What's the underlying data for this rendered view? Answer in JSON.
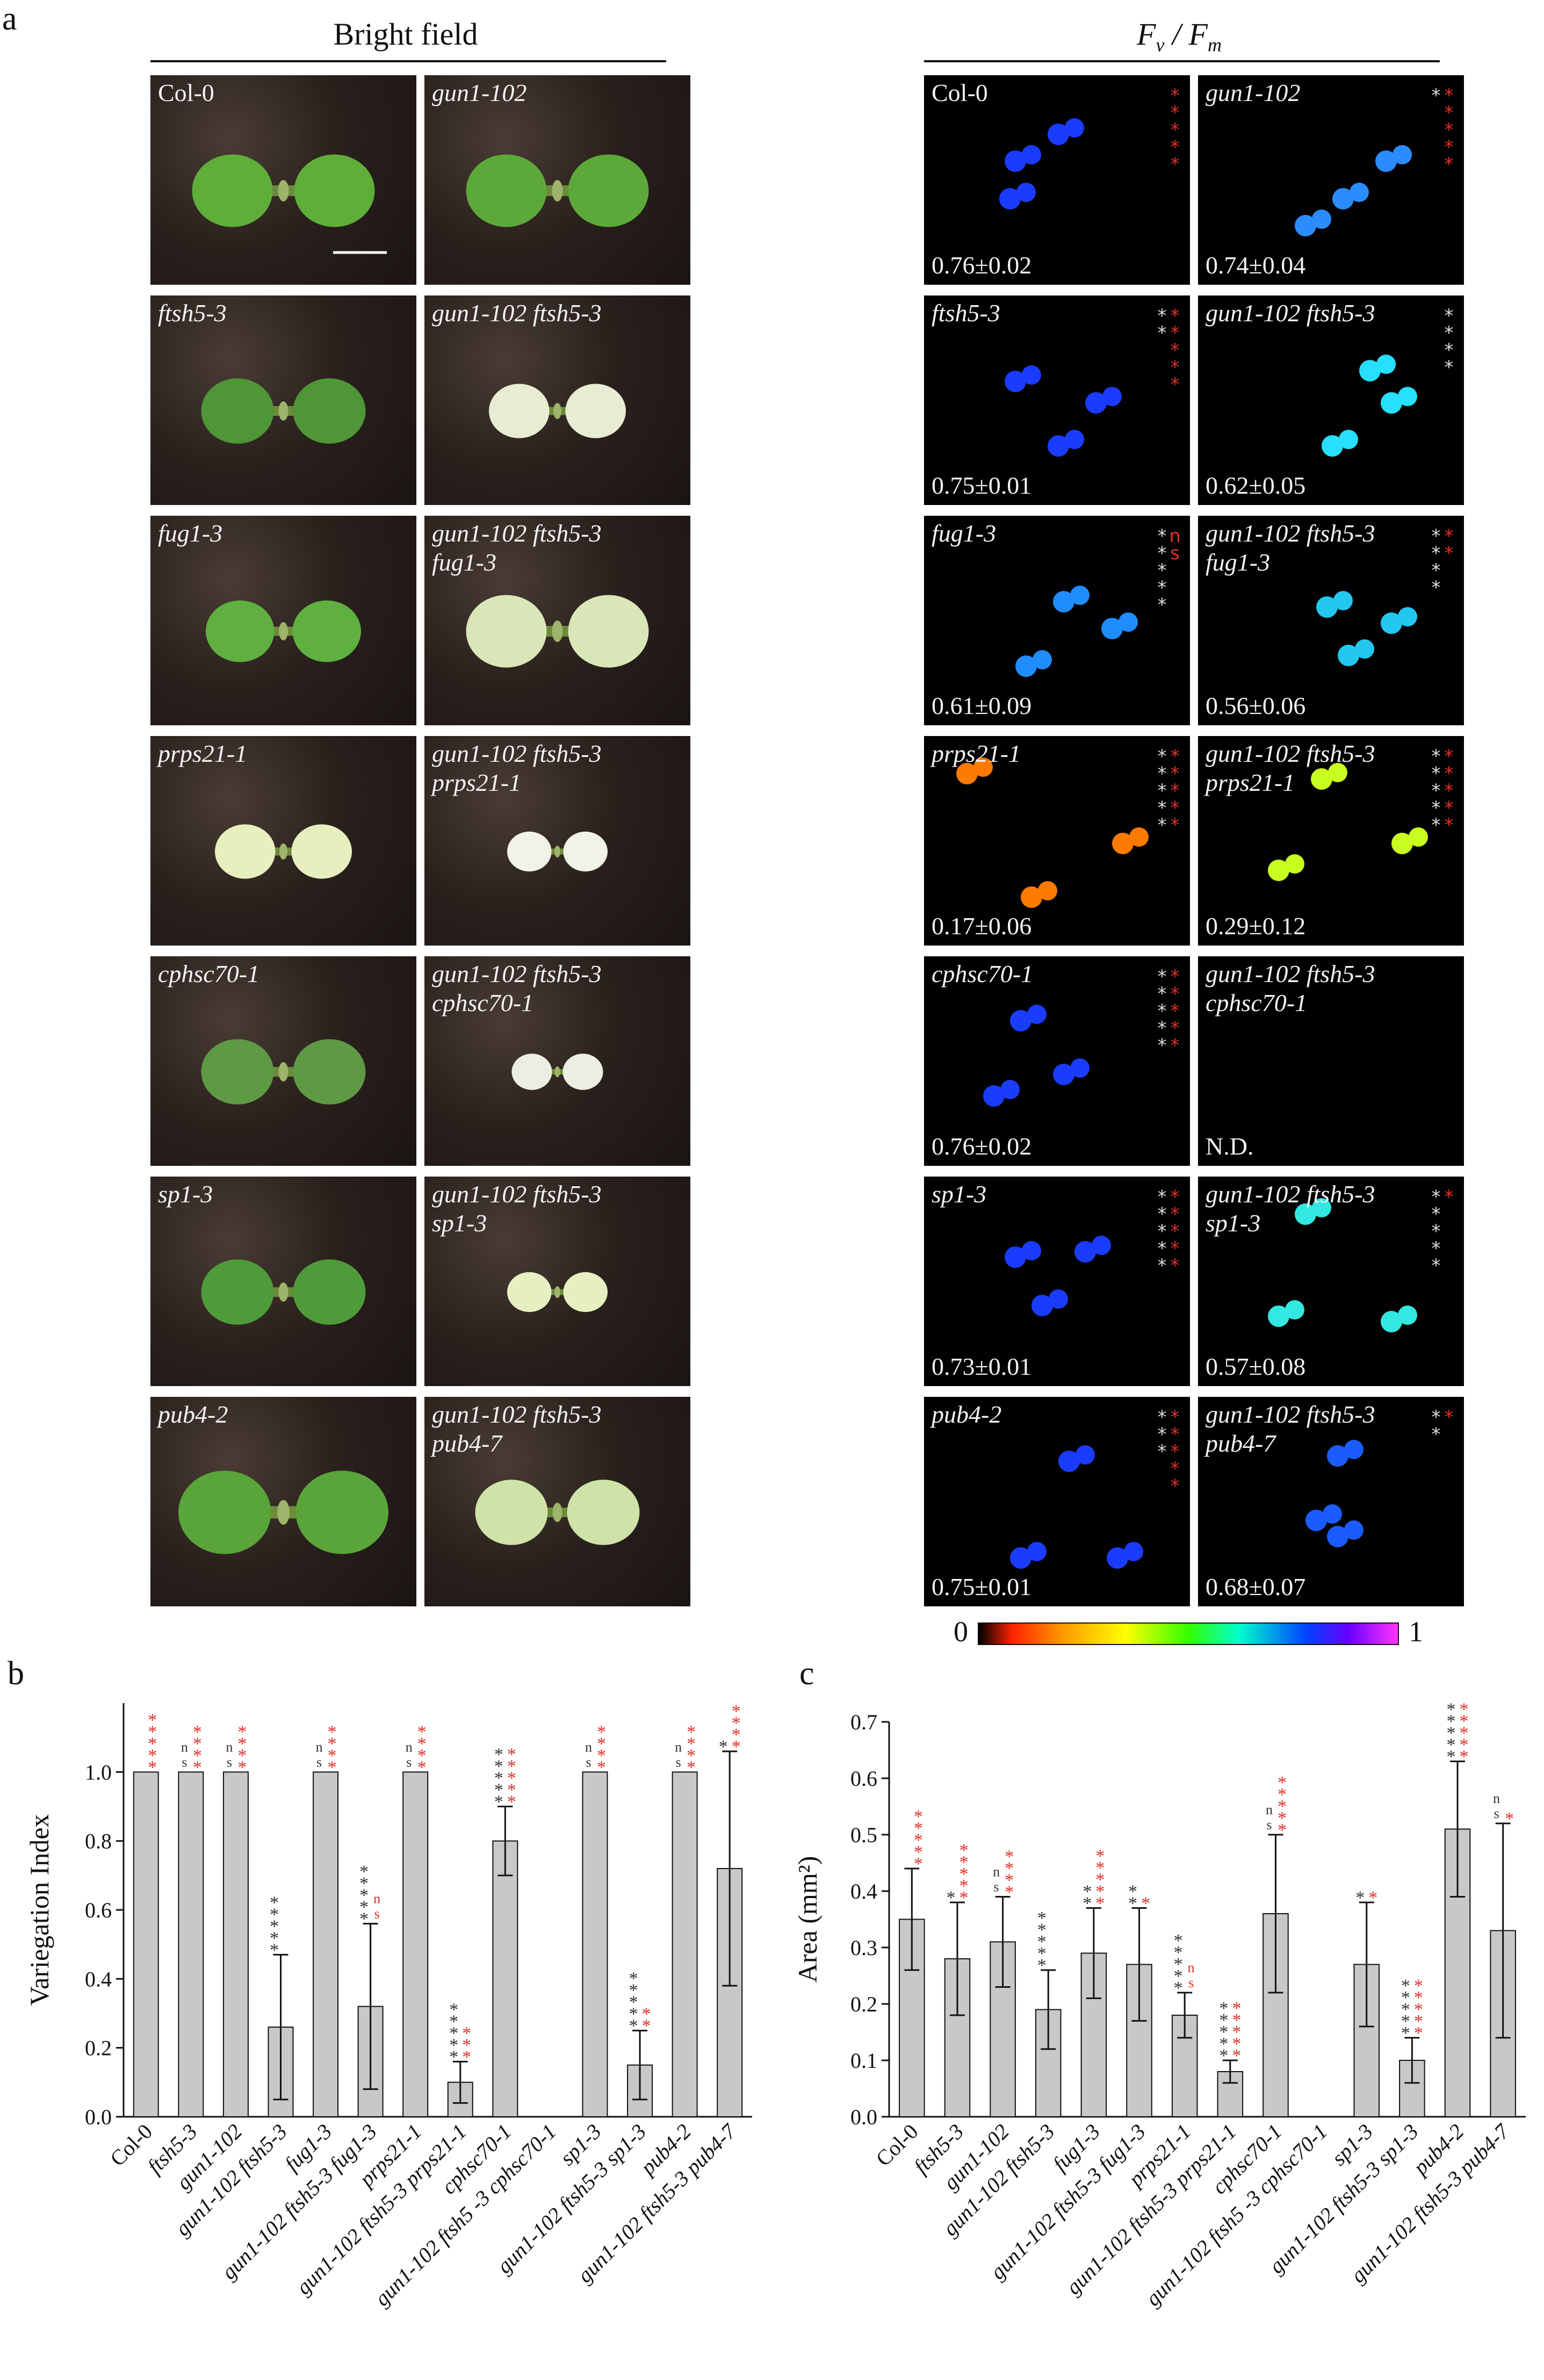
{
  "panel_a": {
    "letter": "a",
    "bright_field_title": "Bright field",
    "fvfm_title": "F_v / F_m",
    "scale_min": "0",
    "scale_max": "1",
    "bright_field": [
      {
        "label": "Col-0",
        "italic": false
      },
      {
        "label": "gun1-102",
        "italic": true
      },
      {
        "label": "ftsh5-3",
        "italic": true
      },
      {
        "label": "gun1-102 ftsh5-3",
        "italic": true
      },
      {
        "label": "fug1-3",
        "italic": true
      },
      {
        "label": "gun1-102 ftsh5-3\nfug1-3",
        "italic": true
      },
      {
        "label": "prps21-1",
        "italic": true
      },
      {
        "label": "gun1-102 ftsh5-3\nprps21-1",
        "italic": true
      },
      {
        "label": "cphsc70-1",
        "italic": true
      },
      {
        "label": "gun1-102 ftsh5-3\ncphsc70-1",
        "italic": true
      },
      {
        "label": "sp1-3",
        "italic": true
      },
      {
        "label": "gun1-102 ftsh5-3\nsp1-3",
        "italic": true
      },
      {
        "label": "pub4-2",
        "italic": true
      },
      {
        "label": "gun1-102 ftsh5-3\npub4-7",
        "italic": true
      }
    ],
    "fvfm": [
      {
        "label": "Col-0",
        "italic": false,
        "value": "0.76±0.02",
        "color": "#1a3cff"
      },
      {
        "label": "gun1-102",
        "italic": true,
        "value": "0.74±0.04",
        "color": "#2a8cff"
      },
      {
        "label": "ftsh5-3",
        "italic": true,
        "value": "0.75±0.01",
        "color": "#1a3cff"
      },
      {
        "label": "gun1-102 ftsh5-3",
        "italic": true,
        "value": "0.62±0.05",
        "color": "#27e0ff"
      },
      {
        "label": "fug1-3",
        "italic": true,
        "value": "0.61±0.09",
        "color": "#1f8cff"
      },
      {
        "label": "gun1-102 ftsh5-3\nfug1-3",
        "italic": true,
        "value": "0.56±0.06",
        "color": "#22c8f0"
      },
      {
        "label": "prps21-1",
        "italic": true,
        "value": "0.17±0.06",
        "color": "#ff7a00"
      },
      {
        "label": "gun1-102 ftsh5-3\nprps21-1",
        "italic": true,
        "value": "0.29±0.12",
        "color": "#c8ff20"
      },
      {
        "label": "cphsc70-1",
        "italic": true,
        "value": "0.76±0.02",
        "color": "#1a3cff"
      },
      {
        "label": "gun1-102 ftsh5-3\ncphsc70-1",
        "italic": true,
        "value": "N.D.",
        "color": ""
      },
      {
        "label": "sp1-3",
        "italic": true,
        "value": "0.73±0.01",
        "color": "#1a3cff"
      },
      {
        "label": "gun1-102 ftsh5-3\nsp1-3",
        "italic": true,
        "value": "0.57±0.08",
        "color": "#33e8e0"
      },
      {
        "label": "pub4-2",
        "italic": true,
        "value": "0.75±0.01",
        "color": "#1a3cff"
      },
      {
        "label": "gun1-102 ftsh5-3\npub4-7",
        "italic": true,
        "value": "0.68±0.07",
        "color": "#1a5cff"
      }
    ]
  },
  "panel_b": {
    "letter": "b"
  },
  "panel_c": {
    "letter": "c"
  },
  "chart_data": [
    {
      "type": "bar",
      "panel": "b",
      "ylabel": "Variegation Index",
      "ylim": [
        0.0,
        1.2
      ],
      "yticks": [
        "0.0",
        "0.2",
        "0.4",
        "0.6",
        "0.8",
        "1.0"
      ],
      "grid": false,
      "categories": [
        "Col-0",
        "ftsh5-3",
        "gun1-102",
        "gun1-102 ftsh5-3",
        "fug1-3",
        "gun1-102 ftsh5-3 fug1-3",
        "prps21-1",
        "gun1-102 ftsh5-3 prps21-1",
        "cphsc70-1",
        "gun1-102 ftsh5 -3 cphsc70-1",
        "sp1-3",
        "gun1-102 ftsh5-3 sp1-3",
        "pub4-2",
        "gun1-102 ftsh5-3 pub4-7"
      ],
      "values": [
        1.0,
        1.0,
        1.0,
        0.26,
        1.0,
        0.32,
        1.0,
        0.1,
        0.8,
        null,
        1.0,
        0.15,
        1.0,
        0.72
      ],
      "errors": [
        0,
        0,
        0,
        0.21,
        0,
        0.24,
        0,
        0.06,
        0.1,
        null,
        0,
        0.1,
        0,
        0.34
      ],
      "significance_black": [
        "",
        "ns",
        "ns",
        "*****",
        "ns",
        "*****",
        "ns",
        "*****",
        "*****",
        "",
        "ns",
        "*****",
        "ns",
        "*"
      ],
      "significance_red": [
        "*****",
        "****",
        "****",
        "",
        "****",
        "ns",
        "****",
        "***",
        "*****",
        "",
        "****",
        "**",
        "****",
        "****"
      ]
    },
    {
      "type": "bar",
      "panel": "c",
      "ylabel": "Area (mm²)",
      "ylim": [
        0.0,
        0.7
      ],
      "yticks": [
        "0.0",
        "0.1",
        "0.2",
        "0.3",
        "0.4",
        "0.5",
        "0.6",
        "0.7"
      ],
      "grid": false,
      "categories": [
        "Col-0",
        "ftsh5-3",
        "gun1-102",
        "gun1-102 ftsh5-3",
        "fug1-3",
        "gun1-102 ftsh5-3 fug1-3",
        "prps21-1",
        "gun1-102 ftsh5-3 prps21-1",
        "cphsc70-1",
        "gun1-102 ftsh5 -3 cphsc70-1",
        "sp1-3",
        "gun1-102 ftsh5-3 sp1-3",
        "pub4-2",
        "gun1-102 ftsh5-3 pub4-7"
      ],
      "values": [
        0.35,
        0.28,
        0.31,
        0.19,
        0.29,
        0.27,
        0.18,
        0.08,
        0.36,
        null,
        0.27,
        0.1,
        0.51,
        0.33
      ],
      "errors": [
        0.09,
        0.1,
        0.08,
        0.07,
        0.08,
        0.1,
        0.04,
        0.02,
        0.14,
        null,
        0.11,
        0.04,
        0.12,
        0.19
      ],
      "significance_black": [
        "",
        "*",
        "ns",
        "*****",
        "**",
        "**",
        "*****",
        "*****",
        "ns",
        "",
        "*",
        "*****",
        "*****",
        "ns"
      ],
      "significance_red": [
        "*****",
        "*****",
        "****",
        "",
        "*****",
        "*",
        "ns",
        "*****",
        "*****",
        "",
        "*",
        "*****",
        "*****",
        "*"
      ]
    }
  ]
}
